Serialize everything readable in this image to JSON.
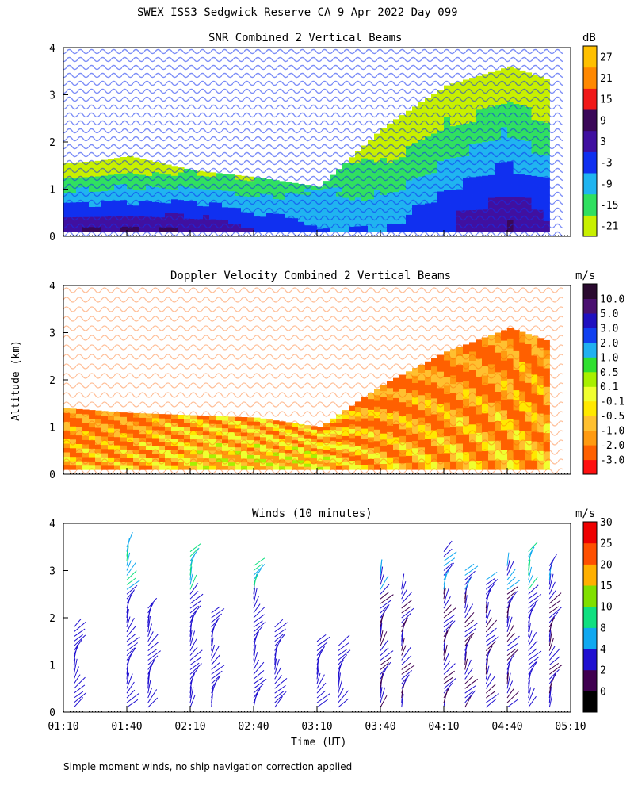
{
  "header": {
    "title": "SWEX ISS3 Sedgwick Reserve CA   9 Apr 2022 Day 099"
  },
  "footer": {
    "note": "Simple moment winds, no ship navigation correction applied"
  },
  "axes": {
    "ylabel": "Altitude (km)",
    "xlabel": "Time (UT)",
    "yticks": [
      "0",
      "1",
      "2",
      "3",
      "4"
    ],
    "xticks": [
      "01:10",
      "01:40",
      "02:10",
      "02:40",
      "03:10",
      "03:40",
      "04:10",
      "04:40",
      "05:10"
    ]
  },
  "chart_data": [
    {
      "type": "heatmap",
      "title": "SNR Combined 2 Vertical Beams",
      "xlabel": "",
      "ylabel": "Altitude (km)",
      "xlim": [
        "01:10",
        "05:10"
      ],
      "ylim": [
        0,
        4
      ],
      "colorbar": {
        "unit": "dB",
        "levels": [
          "-21",
          "-15",
          "-9",
          "-3",
          "3",
          "9",
          "15",
          "21",
          "27"
        ],
        "colors": [
          "#c8f000",
          "#30e060",
          "#20b4f0",
          "#1030f0",
          "#4010a0",
          "#3a0858",
          "#f01818",
          "#ff8800",
          "#ffc000"
        ]
      },
      "series": [
        {
          "x": "01:10",
          "top_km": 1.55,
          "value_bottom_db": 9,
          "value_top_db": -21
        },
        {
          "x": "01:25",
          "top_km": 1.6,
          "value_bottom_db": 9,
          "value_top_db": -21
        },
        {
          "x": "01:40",
          "top_km": 1.7,
          "value_bottom_db": 9,
          "value_top_db": -21
        },
        {
          "x": "02:10",
          "top_km": 1.4,
          "value_bottom_db": 9,
          "value_top_db": -15
        },
        {
          "x": "02:40",
          "top_km": 1.25,
          "value_bottom_db": 3,
          "value_top_db": -15
        },
        {
          "x": "03:10",
          "top_km": 1.05,
          "value_bottom_db": -3,
          "value_top_db": -9
        },
        {
          "x": "03:40",
          "top_km": 2.3,
          "value_bottom_db": -3,
          "value_top_db": -21
        },
        {
          "x": "04:10",
          "top_km": 3.2,
          "value_bottom_db": 3,
          "value_top_db": -21
        },
        {
          "x": "04:40",
          "top_km": 3.6,
          "value_bottom_db": 9,
          "value_top_db": -21
        },
        {
          "x": "05:00",
          "top_km": 3.3,
          "value_bottom_db": 3,
          "value_top_db": -21
        }
      ]
    },
    {
      "type": "heatmap",
      "title": "Doppler Velocity Combined 2 Vertical Beams",
      "xlabel": "",
      "ylabel": "Altitude (km)",
      "xlim": [
        "01:10",
        "05:10"
      ],
      "ylim": [
        0,
        4
      ],
      "colorbar": {
        "unit": "m/s",
        "levels": [
          "-3.0",
          "-2.0",
          "-1.0",
          "-0.5",
          "-0.1",
          "0.1",
          "0.5",
          "1.0",
          "2.0",
          "3.0",
          "5.0",
          "10.0"
        ],
        "colors": [
          "#ff1010",
          "#ff6000",
          "#ff9a10",
          "#ffc030",
          "#ffe800",
          "#f0ff30",
          "#a8f000",
          "#30e030",
          "#20b0f0",
          "#1040f0",
          "#2010c0",
          "#4a1070",
          "#2a0a30"
        ]
      },
      "series": [
        {
          "x": "01:10",
          "top_km": 1.4,
          "value_bottom_ms": -0.5,
          "value_top_ms": -1.0
        },
        {
          "x": "01:40",
          "top_km": 1.3,
          "value_bottom_ms": -0.5,
          "value_top_ms": -1.0
        },
        {
          "x": "02:10",
          "top_km": 1.25,
          "value_bottom_ms": -0.1,
          "value_top_ms": -0.5
        },
        {
          "x": "02:40",
          "top_km": 1.2,
          "value_bottom_ms": -0.1,
          "value_top_ms": -0.5
        },
        {
          "x": "03:10",
          "top_km": 1.0,
          "value_bottom_ms": -0.1,
          "value_top_ms": -0.5
        },
        {
          "x": "03:40",
          "top_km": 1.9,
          "value_bottom_ms": -0.5,
          "value_top_ms": -1.0
        },
        {
          "x": "04:10",
          "top_km": 2.6,
          "value_bottom_ms": -0.5,
          "value_top_ms": -1.0
        },
        {
          "x": "04:40",
          "top_km": 3.1,
          "value_bottom_ms": -0.5,
          "value_top_ms": -1.0
        },
        {
          "x": "05:00",
          "top_km": 2.8,
          "value_bottom_ms": -0.5,
          "value_top_ms": -1.0
        }
      ]
    },
    {
      "type": "scatter",
      "title": "Winds (10 minutes)",
      "xlabel": "Time (UT)",
      "ylabel": "Altitude (km)",
      "xlim": [
        "01:10",
        "05:10"
      ],
      "ylim": [
        0,
        4
      ],
      "colorbar": {
        "unit": "m/s",
        "levels": [
          "0",
          "2",
          "4",
          "8",
          "10",
          "15",
          "20",
          "25",
          "30"
        ],
        "colors": [
          "#000000",
          "#400050",
          "#2010d0",
          "#10a8f0",
          "#10e080",
          "#80e000",
          "#ffb000",
          "#ff5000",
          "#ee0000"
        ]
      },
      "profiles": [
        {
          "time": "01:15",
          "top_km": 1.75,
          "speed_ms": 4
        },
        {
          "time": "01:40",
          "top_km": 3.5,
          "speed_ms": 4
        },
        {
          "time": "01:50",
          "top_km": 2.2,
          "speed_ms": 4
        },
        {
          "time": "02:10",
          "top_km": 3.4,
          "speed_ms": 4
        },
        {
          "time": "02:20",
          "top_km": 2.1,
          "speed_ms": 4
        },
        {
          "time": "02:40",
          "top_km": 3.1,
          "speed_ms": 4
        },
        {
          "time": "02:50",
          "top_km": 1.8,
          "speed_ms": 4
        },
        {
          "time": "03:10",
          "top_km": 1.5,
          "speed_ms": 4
        },
        {
          "time": "03:20",
          "top_km": 1.4,
          "speed_ms": 4
        },
        {
          "time": "03:40",
          "top_km": 3.0,
          "speed_ms": 2
        },
        {
          "time": "03:50",
          "top_km": 2.6,
          "speed_ms": 2
        },
        {
          "time": "04:10",
          "top_km": 3.4,
          "speed_ms": 2
        },
        {
          "time": "04:20",
          "top_km": 3.0,
          "speed_ms": 2
        },
        {
          "time": "04:30",
          "top_km": 2.8,
          "speed_ms": 2
        },
        {
          "time": "04:40",
          "top_km": 3.1,
          "speed_ms": 2
        },
        {
          "time": "04:50",
          "top_km": 3.4,
          "speed_ms": 4
        },
        {
          "time": "05:00",
          "top_km": 3.1,
          "speed_ms": 2
        }
      ]
    }
  ]
}
